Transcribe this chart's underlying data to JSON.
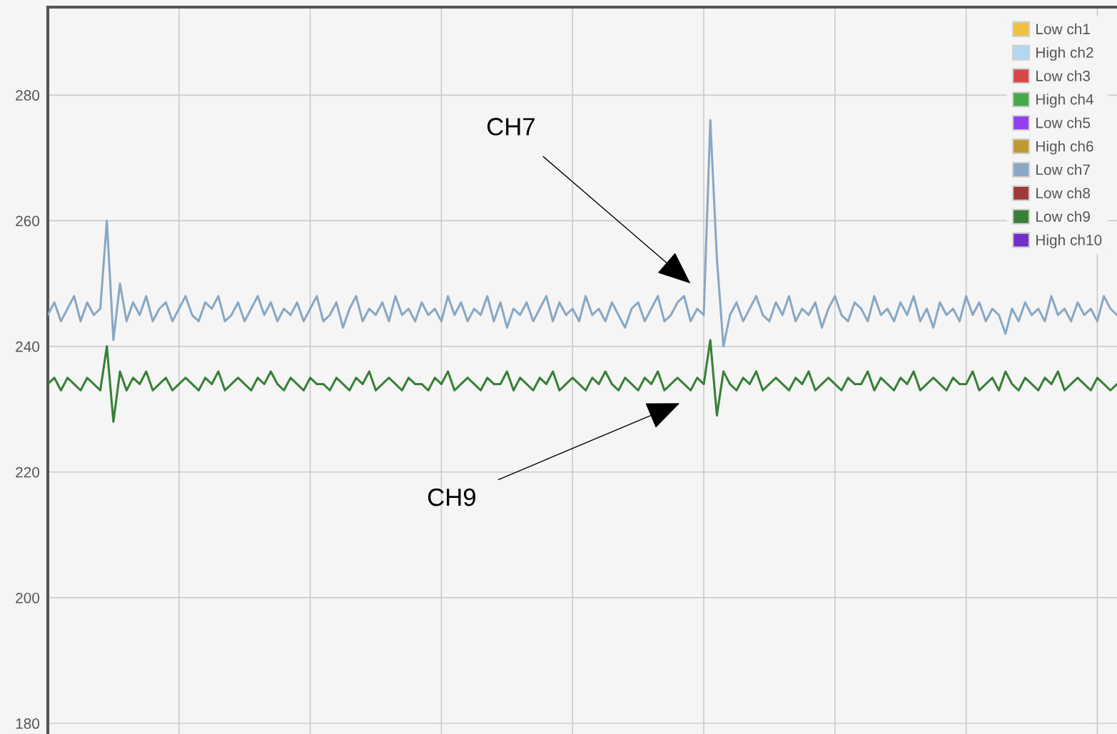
{
  "chart_data": {
    "type": "line",
    "categories": [
      null,
      null,
      null,
      null,
      null,
      null,
      null,
      null,
      null,
      null,
      null,
      null,
      null,
      null,
      null,
      null,
      null,
      null,
      null,
      null,
      null,
      null,
      null,
      null,
      null,
      null,
      null,
      null,
      null,
      null,
      null,
      null,
      null,
      null,
      null,
      null,
      null,
      null,
      null,
      null,
      null,
      null,
      null,
      null,
      null,
      null,
      null,
      null,
      null,
      null,
      null,
      null,
      null,
      null,
      null,
      null,
      null,
      null,
      null,
      null,
      null,
      null,
      null,
      null,
      null,
      null,
      null,
      null,
      null,
      null,
      null,
      null,
      null,
      null,
      null,
      null,
      null,
      null,
      null,
      null,
      null,
      null,
      null,
      null,
      null,
      null,
      null,
      null,
      null,
      null,
      null,
      null,
      null,
      null,
      null,
      null,
      null,
      null,
      null,
      null,
      null,
      null,
      null,
      null,
      null,
      null,
      null,
      null,
      null,
      null,
      null,
      null,
      null,
      null,
      null,
      null,
      null,
      null,
      null,
      null,
      null,
      null,
      null,
      null,
      null,
      null,
      null,
      null,
      null,
      null,
      null,
      null,
      null,
      null,
      null,
      null,
      null,
      null,
      null,
      null,
      null,
      null,
      null,
      null,
      null,
      null,
      null,
      null,
      null,
      null,
      null,
      null,
      null,
      null,
      null,
      null,
      null,
      null,
      null,
      null,
      null,
      null,
      null,
      null
    ],
    "series": [
      {
        "name": "Low ch1",
        "color": "#f0c040",
        "values": [
          null,
          null,
          null,
          null,
          null,
          null,
          null,
          null,
          null,
          null,
          null,
          null,
          null,
          null,
          null,
          null,
          null,
          null,
          null,
          null,
          null,
          null,
          null,
          null,
          null,
          null,
          null,
          null,
          null,
          null,
          null,
          null,
          null,
          null,
          null,
          null,
          null,
          null,
          null,
          null,
          null,
          null,
          null,
          null,
          null,
          null,
          null,
          null,
          null,
          null,
          null,
          null,
          null,
          null,
          null,
          null,
          null,
          null,
          null,
          null,
          null,
          null,
          null,
          null,
          null,
          null,
          null,
          null,
          null,
          null,
          null,
          null,
          null,
          null,
          null,
          null,
          null,
          null,
          null,
          null,
          null,
          null,
          null,
          null,
          null,
          null,
          null,
          null,
          null,
          null,
          null,
          null,
          null,
          null,
          null,
          null,
          null,
          null,
          null,
          null,
          null,
          null,
          null,
          null,
          null,
          null,
          null,
          null,
          null,
          null,
          null,
          null,
          null,
          null,
          null,
          null,
          null,
          null,
          null,
          null,
          null,
          null,
          null,
          null,
          null,
          null,
          null,
          null,
          null,
          null,
          null,
          null,
          null,
          null,
          null,
          null,
          null,
          null,
          null,
          null,
          null,
          null,
          null,
          null,
          null,
          null,
          null,
          null,
          null,
          null,
          null,
          null,
          null,
          null,
          null,
          null,
          null,
          null,
          null,
          null,
          null,
          null,
          null,
          null
        ]
      },
      {
        "name": "High ch2",
        "color": "#b0d8f5",
        "values": [
          null,
          null,
          null,
          null,
          null,
          null,
          null,
          null,
          null,
          null,
          null,
          null,
          null,
          null,
          null,
          null,
          null,
          null,
          null,
          null,
          null,
          null,
          null,
          null,
          null,
          null,
          null,
          null,
          null,
          null,
          null,
          null,
          null,
          null,
          null,
          null,
          null,
          null,
          null,
          null,
          null,
          null,
          null,
          null,
          null,
          null,
          null,
          null,
          null,
          null,
          null,
          null,
          null,
          null,
          null,
          null,
          null,
          null,
          null,
          null,
          null,
          null,
          null,
          null,
          null,
          null,
          null,
          null,
          null,
          null,
          null,
          null,
          null,
          null,
          null,
          null,
          null,
          null,
          null,
          null,
          null,
          null,
          null,
          null,
          null,
          null,
          null,
          null,
          null,
          null,
          null,
          null,
          null,
          null,
          null,
          null,
          null,
          null,
          null,
          null,
          null,
          null,
          null,
          null,
          null,
          null,
          null,
          null,
          null,
          null,
          null,
          null,
          null,
          null,
          null,
          null,
          null,
          null,
          null,
          null,
          null,
          null,
          null,
          null,
          null,
          null,
          null,
          null,
          null,
          null,
          null,
          null,
          null,
          null,
          null,
          null,
          null,
          null,
          null,
          null,
          null,
          null,
          null,
          null,
          null,
          null,
          null,
          null,
          null,
          null,
          null,
          null,
          null,
          null,
          null,
          null,
          null,
          null,
          null,
          null,
          null,
          null,
          null,
          null
        ]
      },
      {
        "name": "Low ch3",
        "color": "#d84848",
        "values": [
          null,
          null,
          null,
          null,
          null,
          null,
          null,
          null,
          null,
          null,
          null,
          null,
          null,
          null,
          null,
          null,
          null,
          null,
          null,
          null,
          null,
          null,
          null,
          null,
          null,
          null,
          null,
          null,
          null,
          null,
          null,
          null,
          null,
          null,
          null,
          null,
          null,
          null,
          null,
          null,
          null,
          null,
          null,
          null,
          null,
          null,
          null,
          null,
          null,
          null,
          null,
          null,
          null,
          null,
          null,
          null,
          null,
          null,
          null,
          null,
          null,
          null,
          null,
          null,
          null,
          null,
          null,
          null,
          null,
          null,
          null,
          null,
          null,
          null,
          null,
          null,
          null,
          null,
          null,
          null,
          null,
          null,
          null,
          null,
          null,
          null,
          null,
          null,
          null,
          null,
          null,
          null,
          null,
          null,
          null,
          null,
          null,
          null,
          null,
          null,
          null,
          null,
          null,
          null,
          null,
          null,
          null,
          null,
          null,
          null,
          null,
          null,
          null,
          null,
          null,
          null,
          null,
          null,
          null,
          null,
          null,
          null,
          null,
          null,
          null,
          null,
          null,
          null,
          null,
          null,
          null,
          null,
          null,
          null,
          null,
          null,
          null,
          null,
          null,
          null,
          null,
          null,
          null,
          null,
          null,
          null,
          null,
          null,
          null,
          null,
          null,
          null,
          null,
          null,
          null,
          null,
          null,
          null,
          null,
          null,
          null,
          null,
          null,
          null
        ]
      },
      {
        "name": "High ch4",
        "color": "#48a848",
        "values": [
          null,
          null,
          null,
          null,
          null,
          null,
          null,
          null,
          null,
          null,
          null,
          null,
          null,
          null,
          null,
          null,
          null,
          null,
          null,
          null,
          null,
          null,
          null,
          null,
          null,
          null,
          null,
          null,
          null,
          null,
          null,
          null,
          null,
          null,
          null,
          null,
          null,
          null,
          null,
          null,
          null,
          null,
          null,
          null,
          null,
          null,
          null,
          null,
          null,
          null,
          null,
          null,
          null,
          null,
          null,
          null,
          null,
          null,
          null,
          null,
          null,
          null,
          null,
          null,
          null,
          null,
          null,
          null,
          null,
          null,
          null,
          null,
          null,
          null,
          null,
          null,
          null,
          null,
          null,
          null,
          null,
          null,
          null,
          null,
          null,
          null,
          null,
          null,
          null,
          null,
          null,
          null,
          null,
          null,
          null,
          null,
          null,
          null,
          null,
          null,
          null,
          null,
          null,
          null,
          null,
          null,
          null,
          null,
          null,
          null,
          null,
          null,
          null,
          null,
          null,
          null,
          null,
          null,
          null,
          null,
          null,
          null,
          null,
          null,
          null,
          null,
          null,
          null,
          null,
          null,
          null,
          null,
          null,
          null,
          null,
          null,
          null,
          null,
          null,
          null,
          null,
          null,
          null,
          null,
          null,
          null,
          null,
          null,
          null,
          null,
          null,
          null,
          null,
          null,
          null,
          null,
          null,
          null,
          null,
          null,
          null,
          null,
          null,
          null
        ]
      },
      {
        "name": "Low ch5",
        "color": "#9040f0",
        "values": [
          null,
          null,
          null,
          null,
          null,
          null,
          null,
          null,
          null,
          null,
          null,
          null,
          null,
          null,
          null,
          null,
          null,
          null,
          null,
          null,
          null,
          null,
          null,
          null,
          null,
          null,
          null,
          null,
          null,
          null,
          null,
          null,
          null,
          null,
          null,
          null,
          null,
          null,
          null,
          null,
          null,
          null,
          null,
          null,
          null,
          null,
          null,
          null,
          null,
          null,
          null,
          null,
          null,
          null,
          null,
          null,
          null,
          null,
          null,
          null,
          null,
          null,
          null,
          null,
          null,
          null,
          null,
          null,
          null,
          null,
          null,
          null,
          null,
          null,
          null,
          null,
          null,
          null,
          null,
          null,
          null,
          null,
          null,
          null,
          null,
          null,
          null,
          null,
          null,
          null,
          null,
          null,
          null,
          null,
          null,
          null,
          null,
          null,
          null,
          null,
          null,
          null,
          null,
          null,
          null,
          null,
          null,
          null,
          null,
          null,
          null,
          null,
          null,
          null,
          null,
          null,
          null,
          null,
          null,
          null,
          null,
          null,
          null,
          null,
          null,
          null,
          null,
          null,
          null,
          null,
          null,
          null,
          null,
          null,
          null,
          null,
          null,
          null,
          null,
          null,
          null,
          null,
          null,
          null,
          null,
          null,
          null,
          null,
          null,
          null,
          null,
          null,
          null,
          null,
          null,
          null,
          null,
          null,
          null,
          null,
          null,
          null,
          null,
          null
        ]
      },
      {
        "name": "High ch6",
        "color": "#c09a30",
        "values": [
          null,
          null,
          null,
          null,
          null,
          null,
          null,
          null,
          null,
          null,
          null,
          null,
          null,
          null,
          null,
          null,
          null,
          null,
          null,
          null,
          null,
          null,
          null,
          null,
          null,
          null,
          null,
          null,
          null,
          null,
          null,
          null,
          null,
          null,
          null,
          null,
          null,
          null,
          null,
          null,
          null,
          null,
          null,
          null,
          null,
          null,
          null,
          null,
          null,
          null,
          null,
          null,
          null,
          null,
          null,
          null,
          null,
          null,
          null,
          null,
          null,
          null,
          null,
          null,
          null,
          null,
          null,
          null,
          null,
          null,
          null,
          null,
          null,
          null,
          null,
          null,
          null,
          null,
          null,
          null,
          null,
          null,
          null,
          null,
          null,
          null,
          null,
          null,
          null,
          null,
          null,
          null,
          null,
          null,
          null,
          null,
          null,
          null,
          null,
          null,
          null,
          null,
          null,
          null,
          null,
          null,
          null,
          null,
          null,
          null,
          null,
          null,
          null,
          null,
          null,
          null,
          null,
          null,
          null,
          null,
          null,
          null,
          null,
          null,
          null,
          null,
          null,
          null,
          null,
          null,
          null,
          null,
          null,
          null,
          null,
          null,
          null,
          null,
          null,
          null,
          null,
          null,
          null,
          null,
          null,
          null,
          null,
          null,
          null,
          null,
          null,
          null,
          null,
          null,
          null,
          null,
          null,
          null,
          null,
          null,
          null,
          null,
          null,
          null
        ]
      },
      {
        "name": "Low ch7",
        "color": "#88a8c4",
        "values": [
          245,
          247,
          244,
          246,
          248,
          244,
          247,
          245,
          246,
          260,
          241,
          250,
          244,
          247,
          245,
          248,
          244,
          246,
          247,
          244,
          246,
          248,
          245,
          244,
          247,
          246,
          248,
          244,
          245,
          247,
          244,
          246,
          248,
          245,
          247,
          244,
          246,
          245,
          247,
          244,
          246,
          248,
          244,
          245,
          247,
          243,
          246,
          248,
          244,
          246,
          245,
          247,
          244,
          248,
          245,
          246,
          244,
          247,
          245,
          246,
          244,
          248,
          245,
          247,
          244,
          246,
          245,
          248,
          244,
          247,
          243,
          246,
          245,
          247,
          244,
          246,
          248,
          244,
          247,
          245,
          246,
          244,
          248,
          245,
          246,
          244,
          247,
          245,
          243,
          246,
          247,
          244,
          246,
          248,
          244,
          245,
          247,
          248,
          244,
          246,
          245,
          276,
          254,
          240,
          245,
          247,
          244,
          246,
          248,
          245,
          244,
          247,
          245,
          248,
          244,
          246,
          245,
          247,
          243,
          246,
          248,
          245,
          244,
          247,
          246,
          244,
          248,
          245,
          246,
          244,
          247,
          245,
          248,
          244,
          246,
          243,
          247,
          245,
          246,
          244,
          248,
          245,
          247,
          244,
          246,
          245,
          242,
          246,
          244,
          247,
          245,
          246,
          244,
          248,
          245,
          246,
          244,
          247,
          245,
          246,
          244,
          248,
          246,
          245
        ]
      },
      {
        "name": "Low ch8",
        "color": "#a03838",
        "values": [
          null,
          null,
          null,
          null,
          null,
          null,
          null,
          null,
          null,
          null,
          null,
          null,
          null,
          null,
          null,
          null,
          null,
          null,
          null,
          null,
          null,
          null,
          null,
          null,
          null,
          null,
          null,
          null,
          null,
          null,
          null,
          null,
          null,
          null,
          null,
          null,
          null,
          null,
          null,
          null,
          null,
          null,
          null,
          null,
          null,
          null,
          null,
          null,
          null,
          null,
          null,
          null,
          null,
          null,
          null,
          null,
          null,
          null,
          null,
          null,
          null,
          null,
          null,
          null,
          null,
          null,
          null,
          null,
          null,
          null,
          null,
          null,
          null,
          null,
          null,
          null,
          null,
          null,
          null,
          null,
          null,
          null,
          null,
          null,
          null,
          null,
          null,
          null,
          null,
          null,
          null,
          null,
          null,
          null,
          null,
          null,
          null,
          null,
          null,
          null,
          null,
          null,
          null,
          null,
          null,
          null,
          null,
          null,
          null,
          null,
          null,
          null,
          null,
          null,
          null,
          null,
          null,
          null,
          null,
          null,
          null,
          null,
          null,
          null,
          null,
          null,
          null,
          null,
          null,
          null,
          null,
          null,
          null,
          null,
          null,
          null,
          null,
          null,
          null,
          null,
          null,
          null,
          null,
          null,
          null,
          null,
          null,
          null,
          null,
          null,
          null,
          null,
          null,
          null,
          null,
          null,
          null,
          null,
          null,
          null,
          null,
          null,
          null,
          null
        ]
      },
      {
        "name": "Low ch9",
        "color": "#388038",
        "values": [
          234,
          235,
          233,
          235,
          234,
          233,
          235,
          234,
          233,
          240,
          228,
          236,
          233,
          235,
          234,
          236,
          233,
          234,
          235,
          233,
          234,
          235,
          234,
          233,
          235,
          234,
          236,
          233,
          234,
          235,
          234,
          233,
          235,
          234,
          236,
          234,
          233,
          235,
          234,
          233,
          235,
          234,
          234,
          233,
          235,
          234,
          233,
          235,
          234,
          236,
          233,
          234,
          235,
          234,
          233,
          235,
          234,
          234,
          233,
          235,
          234,
          236,
          233,
          234,
          235,
          234,
          233,
          235,
          234,
          234,
          236,
          233,
          235,
          234,
          233,
          235,
          234,
          236,
          233,
          234,
          235,
          234,
          233,
          235,
          234,
          236,
          234,
          233,
          235,
          234,
          233,
          235,
          234,
          236,
          233,
          234,
          235,
          234,
          233,
          235,
          234,
          241,
          229,
          236,
          234,
          233,
          235,
          234,
          236,
          233,
          234,
          235,
          234,
          233,
          235,
          234,
          236,
          233,
          234,
          235,
          234,
          233,
          235,
          234,
          234,
          236,
          233,
          235,
          234,
          233,
          235,
          234,
          236,
          233,
          234,
          235,
          234,
          233,
          235,
          234,
          234,
          236,
          233,
          234,
          235,
          233,
          236,
          234,
          233,
          235,
          234,
          233,
          235,
          234,
          236,
          233,
          234,
          235,
          234,
          233,
          235,
          234,
          233,
          234
        ]
      },
      {
        "name": "High ch10",
        "color": "#7030c8",
        "values": [
          null,
          null,
          null,
          null,
          null,
          null,
          null,
          null,
          null,
          null,
          null,
          null,
          null,
          null,
          null,
          null,
          null,
          null,
          null,
          null,
          null,
          null,
          null,
          null,
          null,
          null,
          null,
          null,
          null,
          null,
          null,
          null,
          null,
          null,
          null,
          null,
          null,
          null,
          null,
          null,
          null,
          null,
          null,
          null,
          null,
          null,
          null,
          null,
          null,
          null,
          null,
          null,
          null,
          null,
          null,
          null,
          null,
          null,
          null,
          null,
          null,
          null,
          null,
          null,
          null,
          null,
          null,
          null,
          null,
          null,
          null,
          null,
          null,
          null,
          null,
          null,
          null,
          null,
          null,
          null,
          null,
          null,
          null,
          null,
          null,
          null,
          null,
          null,
          null,
          null,
          null,
          null,
          null,
          null,
          null,
          null,
          null,
          null,
          null,
          null,
          null,
          null,
          null,
          null,
          null,
          null,
          null,
          null,
          null,
          null,
          null,
          null,
          null,
          null,
          null,
          null,
          null,
          null,
          null,
          null,
          null,
          null,
          null,
          null,
          null,
          null,
          null,
          null,
          null,
          null,
          null,
          null,
          null,
          null,
          null,
          null,
          null,
          null,
          null,
          null,
          null,
          null,
          null,
          null,
          null,
          null,
          null,
          null,
          null,
          null,
          null,
          null,
          null,
          null,
          null,
          null,
          null,
          null,
          null,
          null,
          null,
          null,
          null,
          null
        ]
      }
    ],
    "ylim": [
      178.3,
      294
    ],
    "yticks": [
      180,
      200,
      220,
      240,
      260,
      280
    ],
    "grid": true,
    "legend": "top right",
    "tick_labels": "y",
    "marker": "none",
    "line_style": "solid",
    "annotations": [
      "CH7",
      "CH9"
    ]
  }
}
